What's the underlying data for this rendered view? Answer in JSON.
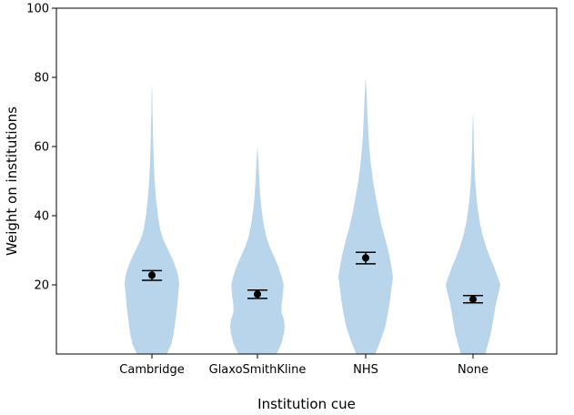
{
  "chart_data": {
    "type": "violin",
    "title": "",
    "xlabel": "Institution cue",
    "ylabel": "Weight on institutions",
    "ylim": [
      0,
      100
    ],
    "yticks": [
      20,
      40,
      60,
      80,
      100
    ],
    "categories": [
      "Cambridge",
      "GlaxoSmithKline",
      "NHS",
      "None"
    ],
    "means": [
      22.8,
      17.3,
      27.8,
      15.8
    ],
    "ci_low": [
      21.3,
      16.1,
      26.1,
      14.8
    ],
    "ci_high": [
      24.1,
      18.5,
      29.4,
      16.9
    ],
    "max": [
      78,
      60,
      80,
      70
    ],
    "violin_color": "#b9d5eb",
    "marker_color": "#000000",
    "density_profiles": [
      [
        [
          0,
          0.55
        ],
        [
          3,
          0.72
        ],
        [
          6,
          0.8
        ],
        [
          9,
          0.85
        ],
        [
          12,
          0.9
        ],
        [
          15,
          0.94
        ],
        [
          18,
          0.97
        ],
        [
          20,
          1.0
        ],
        [
          22,
          0.98
        ],
        [
          24,
          0.92
        ],
        [
          27,
          0.78
        ],
        [
          30,
          0.6
        ],
        [
          33,
          0.42
        ],
        [
          36,
          0.3
        ],
        [
          40,
          0.22
        ],
        [
          45,
          0.15
        ],
        [
          50,
          0.1
        ],
        [
          55,
          0.07
        ],
        [
          60,
          0.05
        ],
        [
          65,
          0.035
        ],
        [
          70,
          0.02
        ],
        [
          75,
          0.012
        ],
        [
          78,
          0.0
        ]
      ],
      [
        [
          0,
          0.7
        ],
        [
          3,
          0.88
        ],
        [
          6,
          0.97
        ],
        [
          8,
          1.0
        ],
        [
          10,
          0.97
        ],
        [
          12,
          0.88
        ],
        [
          14,
          0.88
        ],
        [
          17,
          0.93
        ],
        [
          20,
          0.96
        ],
        [
          22,
          0.9
        ],
        [
          25,
          0.78
        ],
        [
          28,
          0.62
        ],
        [
          31,
          0.45
        ],
        [
          34,
          0.32
        ],
        [
          38,
          0.22
        ],
        [
          42,
          0.15
        ],
        [
          46,
          0.1
        ],
        [
          50,
          0.07
        ],
        [
          55,
          0.04
        ],
        [
          60,
          0.0
        ]
      ],
      [
        [
          0,
          0.35
        ],
        [
          4,
          0.55
        ],
        [
          8,
          0.72
        ],
        [
          12,
          0.82
        ],
        [
          16,
          0.9
        ],
        [
          20,
          0.96
        ],
        [
          22,
          1.0
        ],
        [
          24,
          0.97
        ],
        [
          28,
          0.88
        ],
        [
          32,
          0.76
        ],
        [
          36,
          0.62
        ],
        [
          40,
          0.5
        ],
        [
          45,
          0.38
        ],
        [
          50,
          0.27
        ],
        [
          55,
          0.19
        ],
        [
          60,
          0.13
        ],
        [
          65,
          0.09
        ],
        [
          70,
          0.06
        ],
        [
          75,
          0.035
        ],
        [
          80,
          0.0
        ]
      ],
      [
        [
          0,
          0.45
        ],
        [
          3,
          0.55
        ],
        [
          6,
          0.65
        ],
        [
          9,
          0.72
        ],
        [
          12,
          0.78
        ],
        [
          15,
          0.85
        ],
        [
          18,
          0.95
        ],
        [
          20,
          1.0
        ],
        [
          22,
          0.92
        ],
        [
          25,
          0.78
        ],
        [
          28,
          0.62
        ],
        [
          31,
          0.48
        ],
        [
          34,
          0.36
        ],
        [
          38,
          0.25
        ],
        [
          42,
          0.17
        ],
        [
          46,
          0.12
        ],
        [
          50,
          0.08
        ],
        [
          55,
          0.055
        ],
        [
          60,
          0.035
        ],
        [
          65,
          0.02
        ],
        [
          70,
          0.0
        ]
      ]
    ]
  }
}
